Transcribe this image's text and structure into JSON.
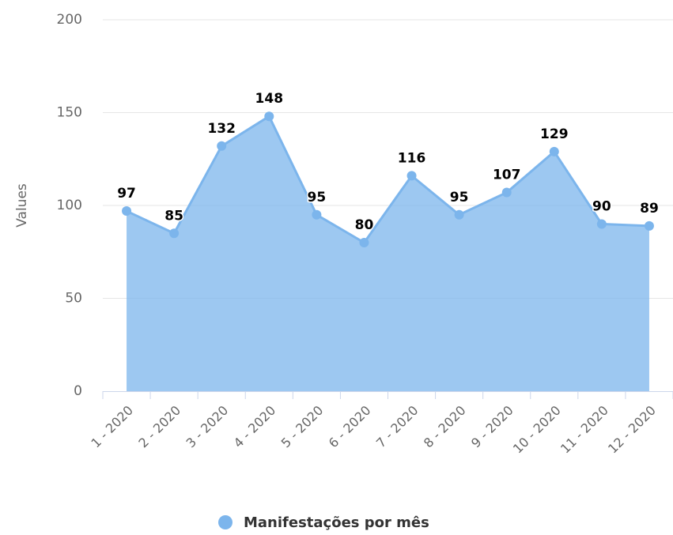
{
  "chart_data": {
    "type": "area",
    "y_axis_title": "Values",
    "categories": [
      "1 - 2020",
      "2 - 2020",
      "3 - 2020",
      "4 - 2020",
      "5 - 2020",
      "6 - 2020",
      "7 - 2020",
      "8 - 2020",
      "9 - 2020",
      "10 - 2020",
      "11 - 2020",
      "12 - 2020"
    ],
    "series": [
      {
        "name": "Manifestações por mês",
        "color": "#7cb5ec",
        "values": [
          97,
          85,
          132,
          148,
          95,
          80,
          116,
          95,
          107,
          129,
          90,
          89
        ]
      }
    ],
    "ylim": [
      0,
      200
    ],
    "yticks": [
      0,
      50,
      100,
      150,
      200
    ],
    "grid": true,
    "legend": "bottom"
  }
}
